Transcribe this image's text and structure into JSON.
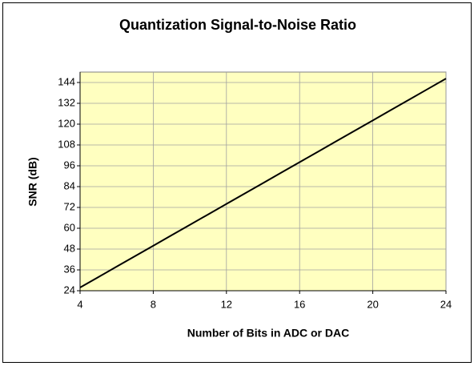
{
  "chart_data": {
    "type": "line",
    "title": "Quantization Signal-to-Noise Ratio",
    "x_label": "Number of Bits in ADC or DAC",
    "y_label": "SNR (dB)",
    "x": [
      4,
      5,
      6,
      7,
      8,
      9,
      10,
      11,
      12,
      13,
      14,
      15,
      16,
      17,
      18,
      19,
      20,
      21,
      22,
      23,
      24
    ],
    "series": [
      {
        "name": "SNR",
        "color": "#000000",
        "values": [
          25.84,
          31.86,
          37.88,
          43.9,
          49.92,
          55.94,
          61.96,
          67.98,
          74.0,
          80.02,
          86.04,
          92.06,
          98.08,
          104.1,
          110.12,
          116.14,
          122.16,
          128.18,
          134.2,
          140.22,
          146.24
        ]
      }
    ],
    "xlim": [
      4,
      24
    ],
    "xticks": [
      4,
      8,
      12,
      16,
      20,
      24
    ],
    "ylim": [
      24,
      150
    ],
    "yticks": [
      24,
      36,
      48,
      60,
      72,
      84,
      96,
      108,
      120,
      132,
      144
    ],
    "grid": true,
    "plot_background": "#ffffc0"
  }
}
